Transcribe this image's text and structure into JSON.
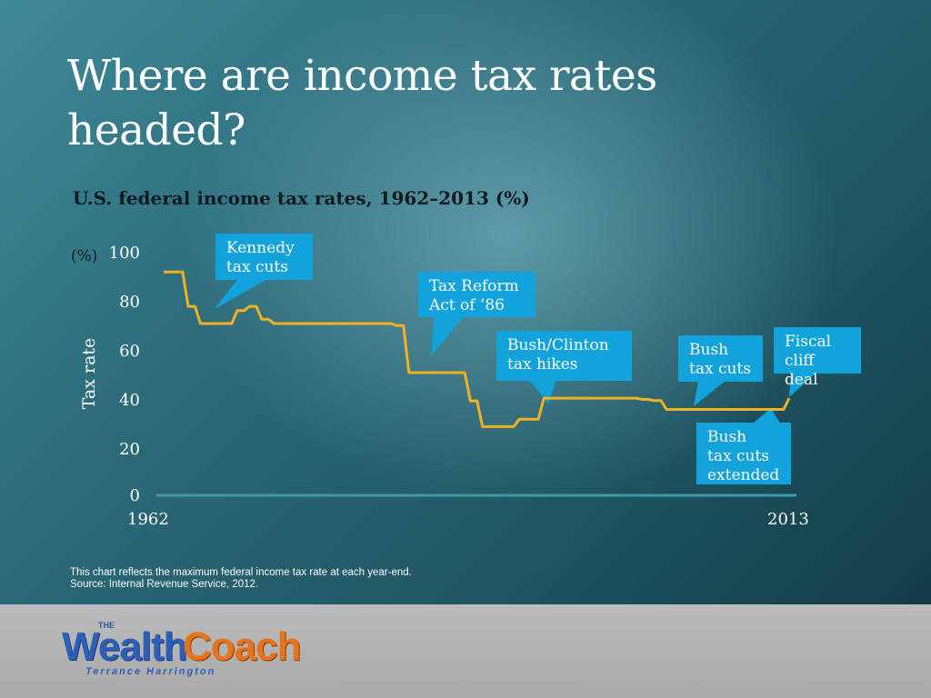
{
  "title": "Where are income tax rates headed?",
  "chart_data": {
    "type": "line",
    "title": "U.S. federal income tax rates, 1962–2013 (%)",
    "unit_label": "(%)",
    "ylabel": "Tax rate",
    "xlabel": "",
    "ylim": [
      0,
      100
    ],
    "yticks": [
      "100",
      "80",
      "60",
      "40",
      "20",
      "0"
    ],
    "xticks": [
      "1962",
      "2013"
    ],
    "xlim": [
      1962,
      2013
    ],
    "line_color": "#f2b023",
    "series": [
      {
        "values": [
          [
            1962,
            91
          ],
          [
            1963,
            91
          ],
          [
            1964,
            77
          ],
          [
            1965,
            70
          ],
          [
            1966,
            70
          ],
          [
            1967,
            70
          ],
          [
            1968,
            75.25
          ],
          [
            1969,
            77
          ],
          [
            1970,
            71.75
          ],
          [
            1971,
            70
          ],
          [
            1972,
            70
          ],
          [
            1973,
            70
          ],
          [
            1974,
            70
          ],
          [
            1975,
            70
          ],
          [
            1976,
            70
          ],
          [
            1977,
            70
          ],
          [
            1978,
            70
          ],
          [
            1979,
            70
          ],
          [
            1980,
            70
          ],
          [
            1981,
            69.13
          ],
          [
            1982,
            50
          ],
          [
            1983,
            50
          ],
          [
            1984,
            50
          ],
          [
            1985,
            50
          ],
          [
            1986,
            50
          ],
          [
            1987,
            38.5
          ],
          [
            1988,
            28
          ],
          [
            1989,
            28
          ],
          [
            1990,
            28
          ],
          [
            1991,
            31
          ],
          [
            1992,
            31
          ],
          [
            1993,
            39.6
          ],
          [
            1994,
            39.6
          ],
          [
            1995,
            39.6
          ],
          [
            1996,
            39.6
          ],
          [
            1997,
            39.6
          ],
          [
            1998,
            39.6
          ],
          [
            1999,
            39.6
          ],
          [
            2000,
            39.6
          ],
          [
            2001,
            39.1
          ],
          [
            2002,
            38.6
          ],
          [
            2003,
            35
          ],
          [
            2004,
            35
          ],
          [
            2005,
            35
          ],
          [
            2006,
            35
          ],
          [
            2007,
            35
          ],
          [
            2008,
            35
          ],
          [
            2009,
            35
          ],
          [
            2010,
            35
          ],
          [
            2011,
            35
          ],
          [
            2012,
            35
          ],
          [
            2013,
            39.6
          ]
        ]
      }
    ],
    "annotations": [
      {
        "id": "kennedy",
        "text": [
          "Kennedy",
          "tax cuts"
        ]
      },
      {
        "id": "reform86",
        "text": [
          "Tax Reform",
          "Act of ’86"
        ]
      },
      {
        "id": "bushclinton",
        "text": [
          "Bush/Clinton",
          "tax hikes"
        ]
      },
      {
        "id": "bush",
        "text": [
          "Bush",
          "tax cuts"
        ]
      },
      {
        "id": "bushext",
        "text": [
          "Bush",
          "tax cuts",
          "extended"
        ]
      },
      {
        "id": "fiscal",
        "text": [
          "Fiscal",
          "cliff deal"
        ]
      }
    ],
    "callout_color": "#12a3dc"
  },
  "notes": {
    "line1": "This chart reflects the maximum federal income tax rate at each year-end.",
    "line2": "Source: Internal Revenue Service, 2012."
  },
  "logo": {
    "the": "THE",
    "wealth": "Wealth",
    "coach": "Coach",
    "name": "Terrance Harrington"
  }
}
